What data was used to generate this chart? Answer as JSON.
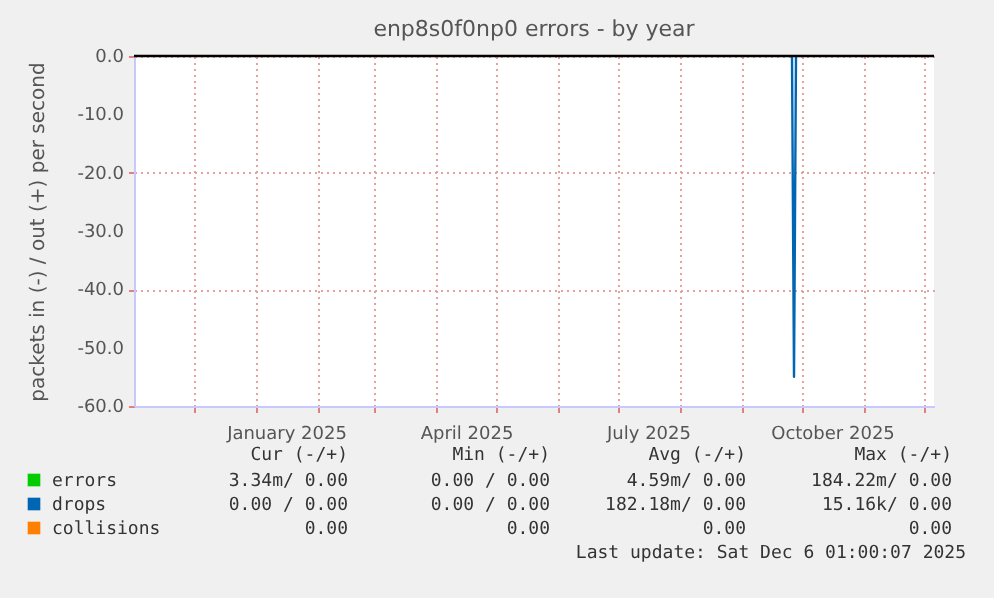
{
  "chart_data": {
    "type": "line",
    "title": "enp8s0f0np0 errors - by year",
    "ylabel": "packets in (-) / out (+) per second",
    "xlim": [
      "2024-11-01",
      "2025-12-06"
    ],
    "xticks": [
      {
        "value": "2024-12-01",
        "label": null
      },
      {
        "value": "2025-01-01",
        "label": null
      },
      {
        "value": "2025-01-16",
        "label": "January 2025"
      },
      {
        "value": "2025-02-01",
        "label": null
      },
      {
        "value": "2025-03-01",
        "label": null
      },
      {
        "value": "2025-04-01",
        "label": null
      },
      {
        "value": "2025-04-16",
        "label": "April 2025"
      },
      {
        "value": "2025-05-01",
        "label": null
      },
      {
        "value": "2025-06-01",
        "label": null
      },
      {
        "value": "2025-07-01",
        "label": null
      },
      {
        "value": "2025-07-16",
        "label": "July 2025"
      },
      {
        "value": "2025-08-01",
        "label": null
      },
      {
        "value": "2025-09-01",
        "label": null
      },
      {
        "value": "2025-10-01",
        "label": null
      },
      {
        "value": "2025-10-16",
        "label": "October 2025"
      },
      {
        "value": "2025-11-01",
        "label": null
      },
      {
        "value": "2025-12-01",
        "label": null
      }
    ],
    "ylim": [
      -60,
      0
    ],
    "yticks": [
      {
        "value": -60,
        "label": "-60.0"
      },
      {
        "value": -50,
        "label": "-50.0"
      },
      {
        "value": -40,
        "label": "-40.0"
      },
      {
        "value": -30,
        "label": "-30.0"
      },
      {
        "value": -20,
        "label": "-20.0"
      },
      {
        "value": -10,
        "label": "-10.0"
      },
      {
        "value": 0,
        "label": "0.0"
      }
    ],
    "grid": true,
    "legend": "bottom left",
    "series": [
      {
        "name": "errors",
        "color": "#00cc00"
      },
      {
        "name": "drops",
        "color": "#0066b3",
        "x": [
          "2025-09-26",
          "2025-09-27",
          "2025-09-28"
        ],
        "values": [
          0,
          -55,
          0
        ]
      },
      {
        "name": "collisions",
        "color": "#ff8000"
      }
    ],
    "ref_lines": [
      {
        "axis": "y",
        "value": 0,
        "color": "#000000"
      }
    ],
    "annotations": [
      "Cur (-/+)",
      "Min (-/+)",
      "Avg (-/+)",
      "Max (-/+)",
      "3.34m/  0.00",
      "0.00 /  0.00",
      "4.59m/  0.00",
      "184.22m/  0.00",
      "0.00 /  0.00",
      "0.00 /  0.00",
      "182.18m/  0.00",
      "15.16k/  0.00",
      "0.00",
      "0.00",
      "0.00",
      "0.00",
      "Last update: Sat Dec  6 01:00:07 2025"
    ]
  }
}
